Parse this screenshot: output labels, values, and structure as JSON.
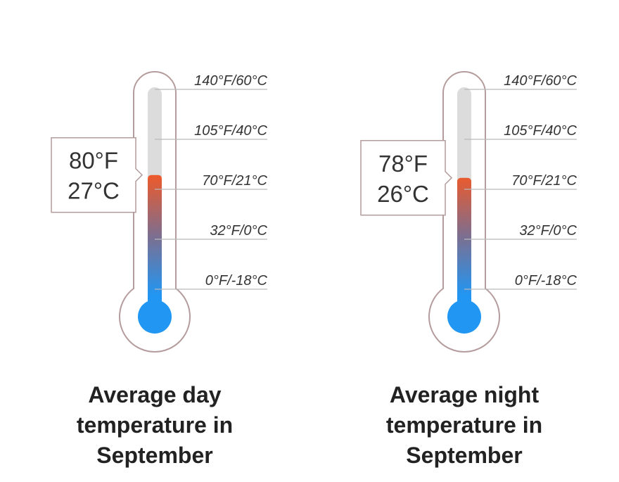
{
  "colors": {
    "outline": "#b49c9c",
    "tube_empty": "#dcdcdc",
    "gridline": "#b9b9b9",
    "fill_hot": "#ec5a2c",
    "fill_mid": "#7d6e8f",
    "fill_cold": "#2196f3",
    "bulb": "#2196f3",
    "text": "#333333"
  },
  "chart_data": [
    {
      "type": "thermometer",
      "title_lines": [
        "Average day",
        "temperature in",
        "September"
      ],
      "value_f": 80,
      "value_c": 27,
      "value_label_f": "80°F",
      "value_label_c": "27°C",
      "scale": [
        {
          "f": 140,
          "label": "140°F/60°C"
        },
        {
          "f": 105,
          "label": "105°F/40°C"
        },
        {
          "f": 70,
          "label": "70°F/21°C"
        },
        {
          "f": 32,
          "label": "32°F/0°C"
        },
        {
          "f": 0,
          "label": "0°F/-18°C"
        }
      ]
    },
    {
      "type": "thermometer",
      "title_lines": [
        "Average night",
        "temperature in",
        "September"
      ],
      "value_f": 78,
      "value_c": 26,
      "value_label_f": "78°F",
      "value_label_c": "26°C",
      "scale": [
        {
          "f": 140,
          "label": "140°F/60°C"
        },
        {
          "f": 105,
          "label": "105°F/40°C"
        },
        {
          "f": 70,
          "label": "70°F/21°C"
        },
        {
          "f": 32,
          "label": "32°F/0°C"
        },
        {
          "f": 0,
          "label": "0°F/-18°C"
        }
      ]
    }
  ]
}
